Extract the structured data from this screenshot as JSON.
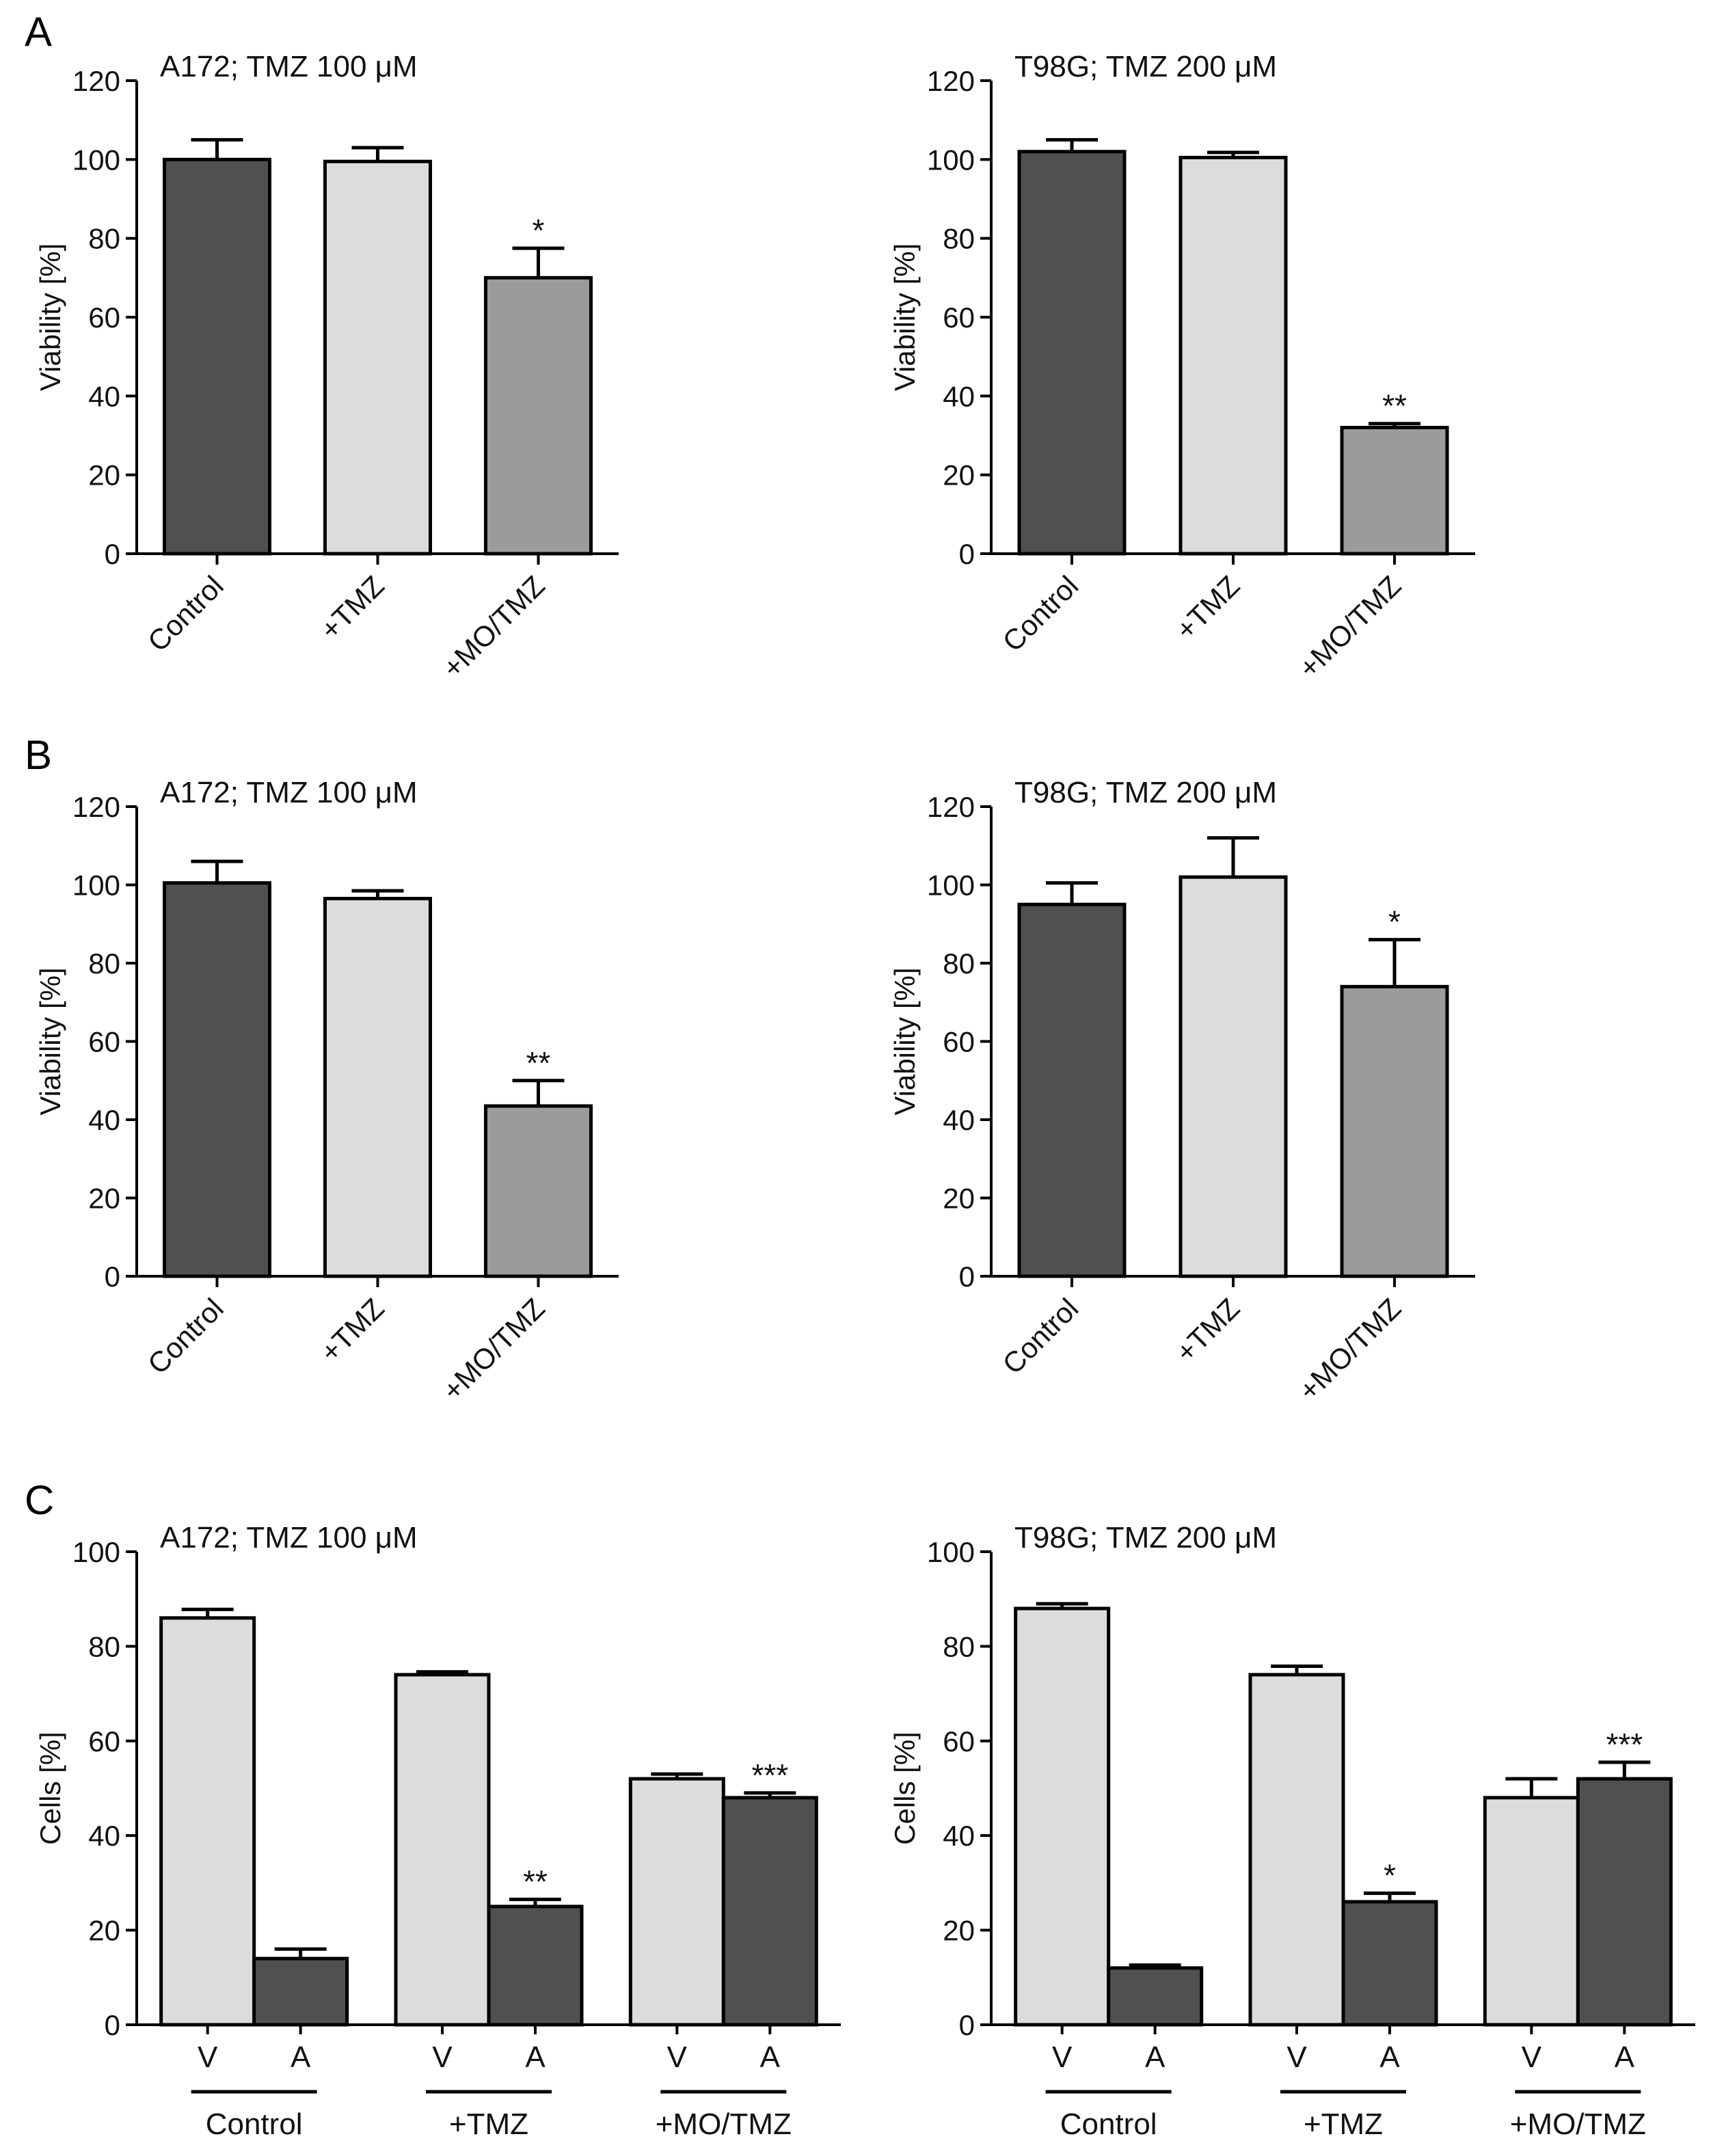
{
  "panel_labels": [
    "A",
    "B",
    "C"
  ],
  "colors": {
    "dark": "#505050",
    "light": "#dcdcdc",
    "mid": "#9a9c9b",
    "axis": "#000000"
  },
  "chart_data": [
    {
      "type": "bar",
      "panel": "A",
      "title": "A172; TMZ 100 μM",
      "ylabel": "Viability [%]",
      "ylim": [
        0,
        120
      ],
      "yticks": [
        0,
        20,
        40,
        60,
        80,
        100,
        120
      ],
      "categories": [
        "Control",
        "+TMZ",
        "+MO/TMZ"
      ],
      "values": [
        100,
        99.5,
        70
      ],
      "errors": [
        5,
        3.5,
        7.5
      ],
      "bar_colors": [
        "dark",
        "light",
        "mid"
      ],
      "significance": [
        "",
        "",
        "*"
      ]
    },
    {
      "type": "bar",
      "panel": "A",
      "title": "T98G; TMZ 200 μM",
      "ylabel": "Viability [%]",
      "ylim": [
        0,
        120
      ],
      "yticks": [
        0,
        20,
        40,
        60,
        80,
        100,
        120
      ],
      "categories": [
        "Control",
        "+TMZ",
        "+MO/TMZ"
      ],
      "values": [
        102,
        100.5,
        32
      ],
      "errors": [
        3,
        1.3,
        1
      ],
      "bar_colors": [
        "dark",
        "light",
        "mid"
      ],
      "significance": [
        "",
        "",
        "**"
      ]
    },
    {
      "type": "bar",
      "panel": "B",
      "title": "A172; TMZ 100 μM",
      "ylabel": "Viability [%]",
      "ylim": [
        0,
        120
      ],
      "yticks": [
        0,
        20,
        40,
        60,
        80,
        100,
        120
      ],
      "categories": [
        "Control",
        "+TMZ",
        "+MO/TMZ"
      ],
      "values": [
        100.5,
        96.5,
        43.5
      ],
      "errors": [
        5.5,
        2,
        6.5
      ],
      "bar_colors": [
        "dark",
        "light",
        "mid"
      ],
      "significance": [
        "",
        "",
        "**"
      ]
    },
    {
      "type": "bar",
      "panel": "B",
      "title": "T98G; TMZ 200 μM",
      "ylabel": "Viability [%]",
      "ylim": [
        0,
        120
      ],
      "yticks": [
        0,
        20,
        40,
        60,
        80,
        100,
        120
      ],
      "categories": [
        "Control",
        "+TMZ",
        "+MO/TMZ"
      ],
      "values": [
        95,
        102,
        74
      ],
      "errors": [
        5.5,
        10,
        12
      ],
      "bar_colors": [
        "dark",
        "light",
        "mid"
      ],
      "significance": [
        "",
        "",
        "*"
      ]
    },
    {
      "type": "bar",
      "panel": "C",
      "title": "A172; TMZ 100 μM",
      "ylabel": "Cells [%]",
      "ylim": [
        0,
        100
      ],
      "yticks": [
        0,
        20,
        40,
        60,
        80,
        100
      ],
      "groups": [
        "Control",
        "+TMZ",
        "+MO/TMZ"
      ],
      "subcategories": [
        "V",
        "A"
      ],
      "series": [
        {
          "name": "V",
          "color": "light",
          "values": [
            86,
            74,
            52
          ],
          "errors": [
            1.8,
            0.6,
            1
          ],
          "significance": [
            "",
            "",
            ""
          ]
        },
        {
          "name": "A",
          "color": "dark",
          "values": [
            14,
            25,
            48
          ],
          "errors": [
            2,
            1.5,
            1
          ],
          "significance": [
            "",
            "**",
            "***"
          ]
        }
      ]
    },
    {
      "type": "bar",
      "panel": "C",
      "title": "T98G; TMZ 200 μM",
      "ylabel": "Cells [%]",
      "ylim": [
        0,
        100
      ],
      "yticks": [
        0,
        20,
        40,
        60,
        80,
        100
      ],
      "groups": [
        "Control",
        "+TMZ",
        "+MO/TMZ"
      ],
      "subcategories": [
        "V",
        "A"
      ],
      "series": [
        {
          "name": "V",
          "color": "light",
          "values": [
            88,
            74,
            48
          ],
          "errors": [
            1,
            1.8,
            4
          ],
          "significance": [
            "",
            "",
            ""
          ]
        },
        {
          "name": "A",
          "color": "dark",
          "values": [
            12,
            26,
            52
          ],
          "errors": [
            0.6,
            1.8,
            3.5
          ],
          "significance": [
            "",
            "*",
            "***"
          ]
        }
      ]
    }
  ]
}
